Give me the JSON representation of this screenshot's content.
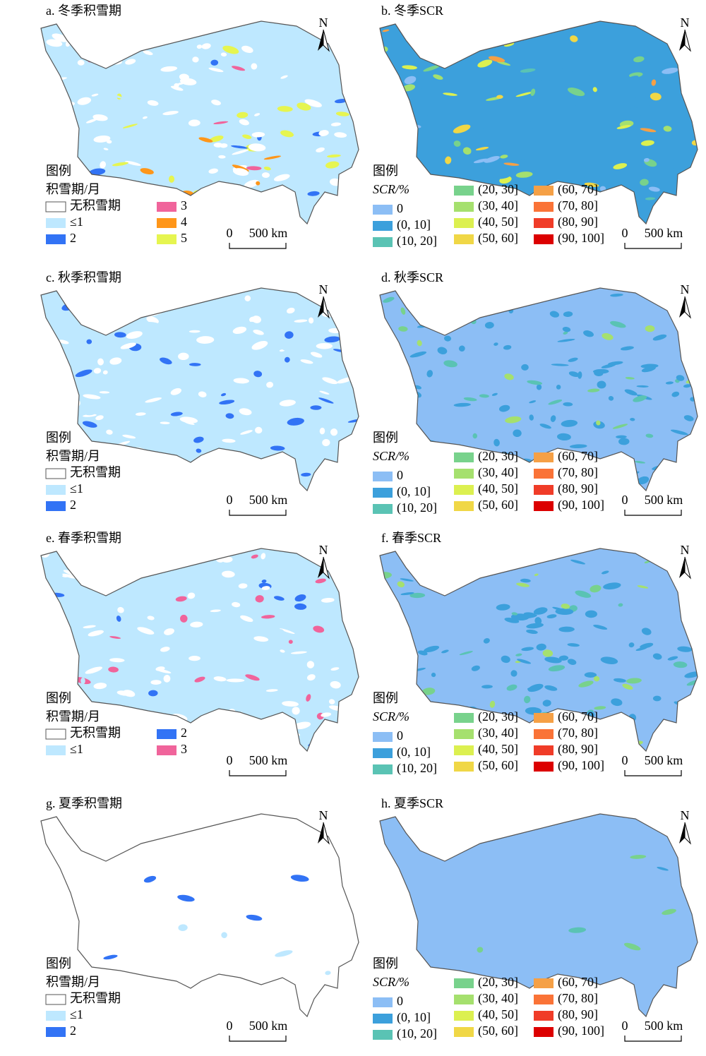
{
  "panels": [
    {
      "title": "a. 冬季积雪期",
      "legend_title": "图例",
      "legend_subtitle": "积雪期/月",
      "legend": [
        {
          "label": "无积雪期",
          "color": "#ffffff"
        },
        {
          "label": "≤1",
          "color": "#bee8ff"
        },
        {
          "label": "2",
          "color": "#3273f5"
        },
        {
          "label": "3",
          "color": "#f0649b"
        },
        {
          "label": "4",
          "color": "#ff9619"
        },
        {
          "label": "5",
          "color": "#e6f550"
        }
      ],
      "scale": [
        "0",
        "500 km"
      ],
      "north": "N"
    },
    {
      "title": "b. 冬季SCR",
      "legend_title": "图例",
      "legend_subtitle": "SCR/%",
      "legend": [
        {
          "label": "0",
          "color": "#8cbef5"
        },
        {
          "label": "(0, 10]",
          "color": "#3ca0dc"
        },
        {
          "label": "(10, 20]",
          "color": "#5ac3b4"
        },
        {
          "label": "(20, 30]",
          "color": "#78d28c"
        },
        {
          "label": "(30, 40]",
          "color": "#a5e06e"
        },
        {
          "label": "(40, 50]",
          "color": "#dcf050"
        },
        {
          "label": "(50, 60]",
          "color": "#f0d746"
        },
        {
          "label": "(60, 70]",
          "color": "#f5a046"
        },
        {
          "label": "(70, 80]",
          "color": "#fa7337"
        },
        {
          "label": "(80, 90]",
          "color": "#f03c28"
        },
        {
          "label": "(90, 100]",
          "color": "#dc0000"
        }
      ],
      "scale": [
        "0",
        "500 km"
      ],
      "north": "N"
    },
    {
      "title": "c. 秋季积雪期",
      "legend_title": "图例",
      "legend_subtitle": "积雪期/月",
      "legend": [
        {
          "label": "无积雪期",
          "color": "#ffffff"
        },
        {
          "label": "≤1",
          "color": "#bee8ff"
        },
        {
          "label": "2",
          "color": "#3273f5"
        }
      ],
      "scale": [
        "0",
        "500 km"
      ],
      "north": "N"
    },
    {
      "title": "d. 秋季SCR",
      "legend_title": "图例",
      "legend_subtitle": "SCR/%",
      "legend": [
        {
          "label": "0",
          "color": "#8cbef5"
        },
        {
          "label": "(0, 10]",
          "color": "#3ca0dc"
        },
        {
          "label": "(10, 20]",
          "color": "#5ac3b4"
        },
        {
          "label": "(20, 30]",
          "color": "#78d28c"
        },
        {
          "label": "(30, 40]",
          "color": "#a5e06e"
        },
        {
          "label": "(40, 50]",
          "color": "#dcf050"
        },
        {
          "label": "(50, 60]",
          "color": "#f0d746"
        },
        {
          "label": "(60, 70]",
          "color": "#f5a046"
        },
        {
          "label": "(70, 80]",
          "color": "#fa7337"
        },
        {
          "label": "(80, 90]",
          "color": "#f03c28"
        },
        {
          "label": "(90, 100]",
          "color": "#dc0000"
        }
      ],
      "scale": [
        "0",
        "500 km"
      ],
      "north": "N"
    },
    {
      "title": "e. 春季积雪期",
      "legend_title": "图例",
      "legend_subtitle": "积雪期/月",
      "legend": [
        {
          "label": "无积雪期",
          "color": "#ffffff"
        },
        {
          "label": "≤1",
          "color": "#bee8ff"
        },
        {
          "label": "2",
          "color": "#3273f5"
        },
        {
          "label": "3",
          "color": "#f0649b"
        }
      ],
      "scale": [
        "0",
        "500 km"
      ],
      "north": "N"
    },
    {
      "title": "f. 春季SCR",
      "legend_title": "图例",
      "legend_subtitle": "SCR/%",
      "legend": [
        {
          "label": "0",
          "color": "#8cbef5"
        },
        {
          "label": "(0, 10]",
          "color": "#3ca0dc"
        },
        {
          "label": "(10, 20]",
          "color": "#5ac3b4"
        },
        {
          "label": "(20, 30]",
          "color": "#78d28c"
        },
        {
          "label": "(30, 40]",
          "color": "#a5e06e"
        },
        {
          "label": "(40, 50]",
          "color": "#dcf050"
        },
        {
          "label": "(50, 60]",
          "color": "#f0d746"
        },
        {
          "label": "(60, 70]",
          "color": "#f5a046"
        },
        {
          "label": "(70, 80]",
          "color": "#fa7337"
        },
        {
          "label": "(80, 90]",
          "color": "#f03c28"
        },
        {
          "label": "(90, 100]",
          "color": "#dc0000"
        }
      ],
      "scale": [
        "0",
        "500 km"
      ],
      "north": "N"
    },
    {
      "title": "g. 夏季积雪期",
      "legend_title": "图例",
      "legend_subtitle": "积雪期/月",
      "legend": [
        {
          "label": "无积雪期",
          "color": "#ffffff"
        },
        {
          "label": "≤1",
          "color": "#bee8ff"
        },
        {
          "label": "2",
          "color": "#3273f5"
        }
      ],
      "scale": [
        "0",
        "500 km"
      ],
      "north": "N"
    },
    {
      "title": "h. 夏季SCR",
      "legend_title": "图例",
      "legend_subtitle": "SCR/%",
      "legend": [
        {
          "label": "0",
          "color": "#8cbef5"
        },
        {
          "label": "(0, 10]",
          "color": "#3ca0dc"
        },
        {
          "label": "(10, 20]",
          "color": "#5ac3b4"
        },
        {
          "label": "(20, 30]",
          "color": "#78d28c"
        },
        {
          "label": "(30, 40]",
          "color": "#a5e06e"
        },
        {
          "label": "(40, 50]",
          "color": "#dcf050"
        },
        {
          "label": "(50, 60]",
          "color": "#f0d746"
        },
        {
          "label": "(60, 70]",
          "color": "#f5a046"
        },
        {
          "label": "(70, 80]",
          "color": "#fa7337"
        },
        {
          "label": "(80, 90]",
          "color": "#f03c28"
        },
        {
          "label": "(90, 100]",
          "color": "#dc0000"
        }
      ],
      "scale": [
        "0",
        "500 km"
      ],
      "north": "N"
    }
  ]
}
